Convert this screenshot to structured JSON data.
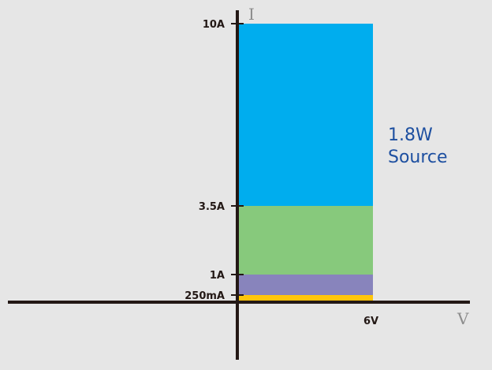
{
  "chart_data": {
    "type": "diagram",
    "x_axis_label": "V",
    "y_axis_label": "I",
    "x_tick": "6V",
    "y_ticks": [
      "10A",
      "3.5A",
      "1A",
      "250mA"
    ],
    "bands": [
      {
        "from": "3.5A",
        "to": "10A",
        "color": "#00adee"
      },
      {
        "from": "1A",
        "to": "3.5A",
        "color": "#87c97c"
      },
      {
        "from": "250mA",
        "to": "1A",
        "color": "#8884bc"
      },
      {
        "from": "0",
        "to": "250mA",
        "color": "#ffc50b"
      }
    ],
    "annotation": [
      "1.8W",
      "Source"
    ],
    "colors": {
      "axis": "#231815",
      "annotation": "#1d4fa0"
    }
  }
}
